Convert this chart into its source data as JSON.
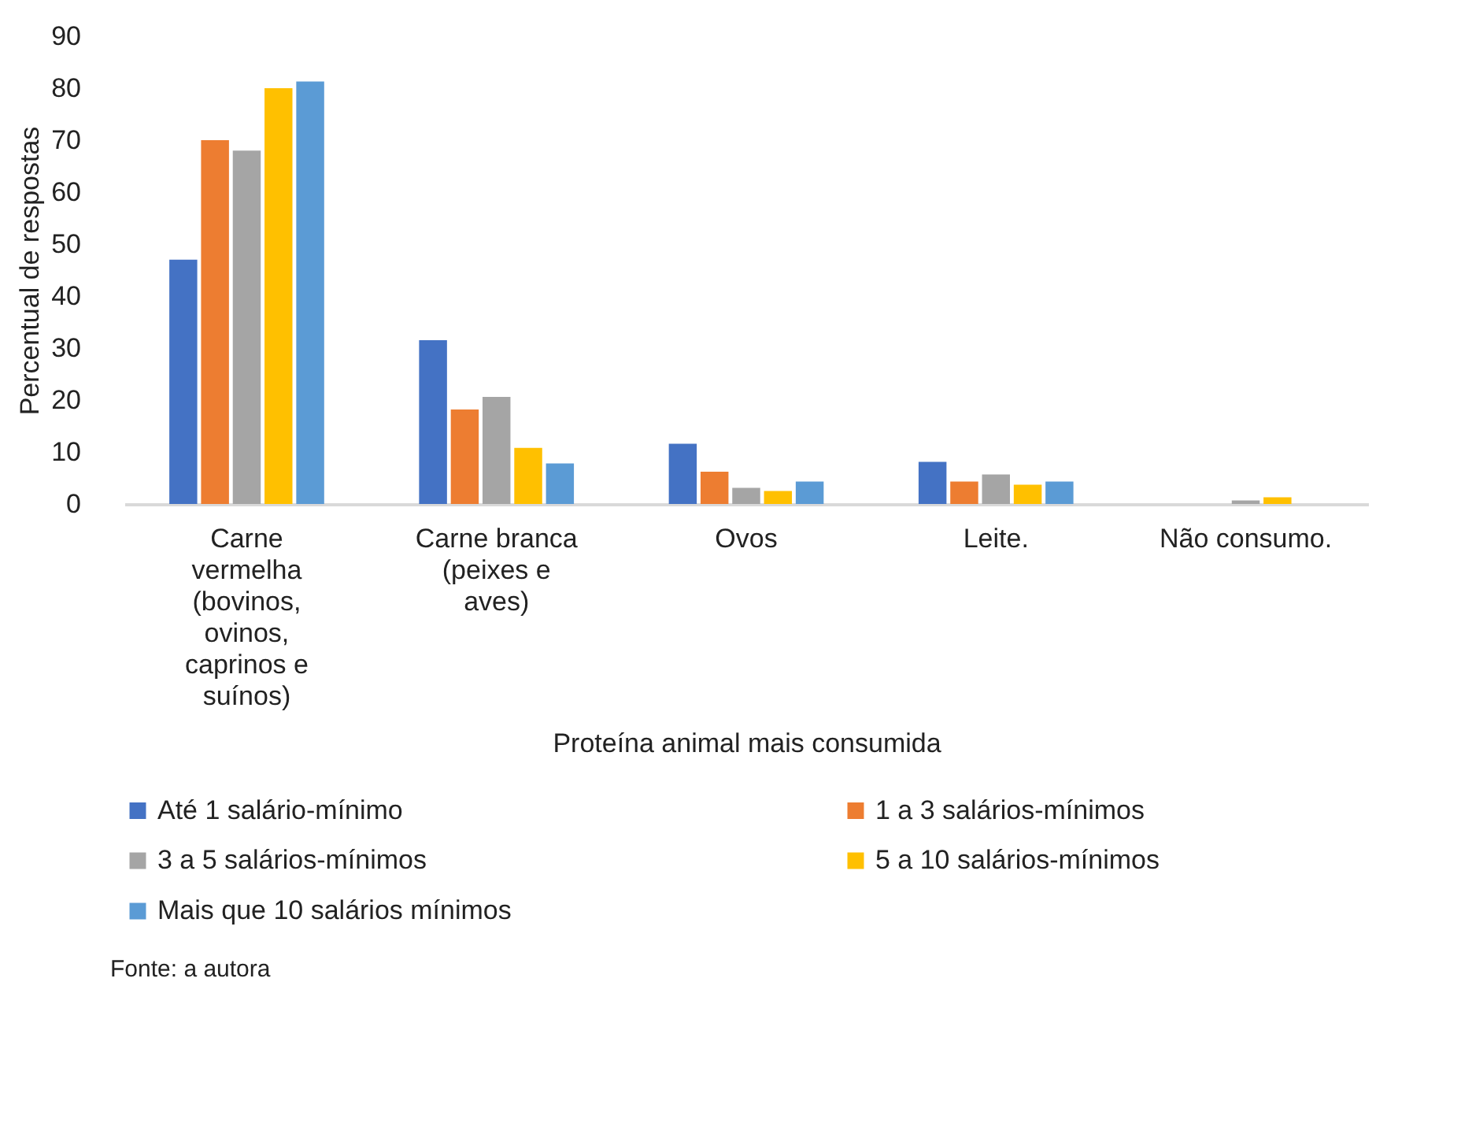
{
  "chart_data": {
    "type": "bar",
    "xlabel": "Proteína animal mais consumida",
    "ylabel": "Percentual de respostas",
    "categories": [
      "Carne vermelha (bovinos, ovinos, caprinos e suínos)",
      "Carne branca (peixes e aves)",
      "Ovos",
      "Leite.",
      "Não consumo."
    ],
    "series": [
      {
        "name": "Até 1 salário-mínimo",
        "color": "#4472c4",
        "values": [
          47,
          31.5,
          11.6,
          8.1,
          0
        ]
      },
      {
        "name": "1 a 3 salários-mínimos",
        "color": "#ed7d31",
        "values": [
          70,
          18.2,
          6.2,
          4.3,
          0
        ]
      },
      {
        "name": "3 a 5 salários-mínimos",
        "color": "#a5a5a5",
        "values": [
          68,
          20.6,
          3.1,
          5.7,
          0.7
        ]
      },
      {
        "name": "5 a 10 salários-mínimos",
        "color": "#ffc000",
        "values": [
          80,
          10.8,
          2.5,
          3.7,
          1.3
        ]
      },
      {
        "name": "Mais que 10 salários mínimos",
        "color": "#5b9bd5",
        "values": [
          81.3,
          7.8,
          4.3,
          4.3,
          0
        ]
      }
    ],
    "ylim": [
      0,
      90
    ],
    "yticks": [
      0,
      10,
      20,
      30,
      40,
      50,
      60,
      70,
      80,
      90
    ],
    "grid": false,
    "legend": "bottom",
    "annotations": [
      "Fonte: a autora"
    ]
  }
}
